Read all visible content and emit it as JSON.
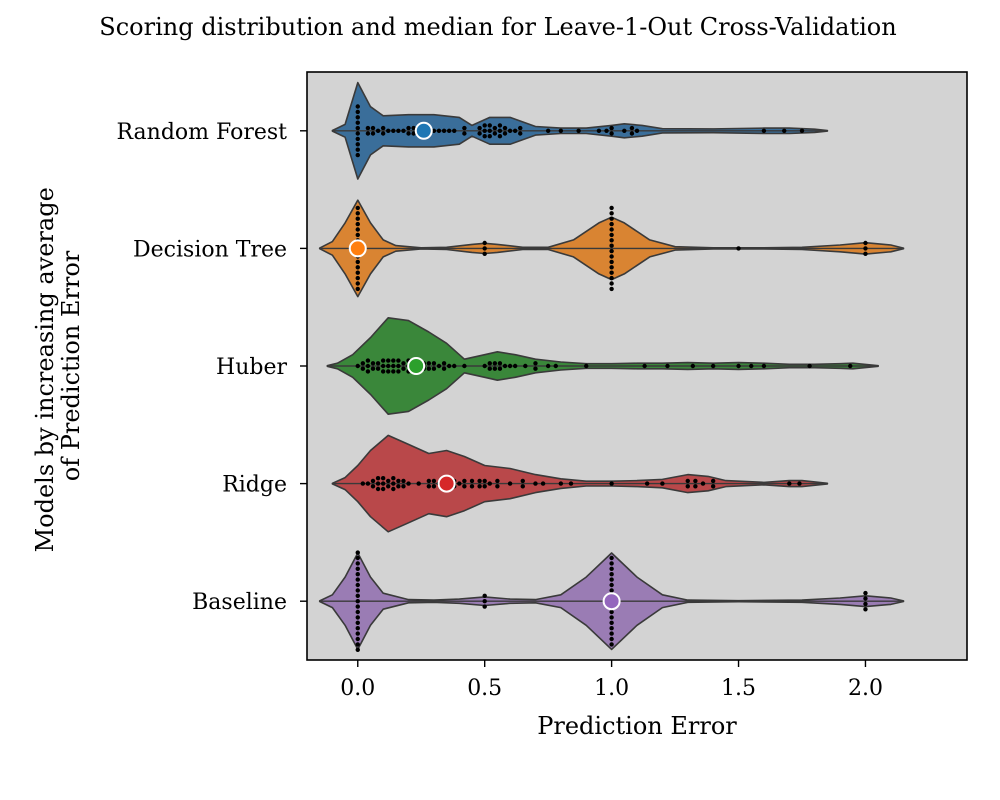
{
  "chart_data": {
    "type": "violin",
    "title": "Scoring distribution and median for Leave-1-Out Cross-Validation",
    "xlabel": "Prediction Error",
    "ylabel_lines": [
      "Models by increasing average",
      "of Prediction Error"
    ],
    "xlim": [
      -0.2,
      2.4
    ],
    "x_ticks": [
      0.0,
      0.5,
      1.0,
      1.5,
      2.0
    ],
    "x_tick_labels": [
      "0.0",
      "0.5",
      "1.0",
      "1.5",
      "2.0"
    ],
    "background": "#d3d3d3",
    "series": [
      {
        "name": "Random Forest",
        "color": "#3a6e9a",
        "median_color": "#1f77b4",
        "median": 0.26,
        "range": [
          -0.1,
          1.85
        ],
        "density": [
          [
            -0.1,
            0.005
          ],
          [
            -0.05,
            0.12
          ],
          [
            0.0,
            0.9
          ],
          [
            0.05,
            0.45
          ],
          [
            0.1,
            0.28
          ],
          [
            0.2,
            0.3
          ],
          [
            0.3,
            0.3
          ],
          [
            0.4,
            0.25
          ],
          [
            0.45,
            0.1
          ],
          [
            0.52,
            0.25
          ],
          [
            0.6,
            0.25
          ],
          [
            0.7,
            0.08
          ],
          [
            0.8,
            0.05
          ],
          [
            0.9,
            0.05
          ],
          [
            1.0,
            0.1
          ],
          [
            1.05,
            0.13
          ],
          [
            1.12,
            0.1
          ],
          [
            1.2,
            0.04
          ],
          [
            1.4,
            0.035
          ],
          [
            1.6,
            0.05
          ],
          [
            1.7,
            0.05
          ],
          [
            1.8,
            0.03
          ],
          [
            1.85,
            0.005
          ]
        ],
        "points": [
          [
            0.0,
            10
          ],
          [
            0.04,
            2
          ],
          [
            0.06,
            2
          ],
          [
            0.08,
            1
          ],
          [
            0.1,
            2
          ],
          [
            0.12,
            1
          ],
          [
            0.14,
            1
          ],
          [
            0.16,
            1
          ],
          [
            0.18,
            1
          ],
          [
            0.2,
            2
          ],
          [
            0.22,
            2
          ],
          [
            0.24,
            1
          ],
          [
            0.26,
            2
          ],
          [
            0.28,
            1
          ],
          [
            0.3,
            1
          ],
          [
            0.32,
            1
          ],
          [
            0.34,
            1
          ],
          [
            0.36,
            1
          ],
          [
            0.38,
            1
          ],
          [
            0.42,
            2
          ],
          [
            0.48,
            2
          ],
          [
            0.5,
            3
          ],
          [
            0.52,
            3
          ],
          [
            0.54,
            2
          ],
          [
            0.56,
            3
          ],
          [
            0.58,
            2
          ],
          [
            0.6,
            1
          ],
          [
            0.62,
            1
          ],
          [
            0.64,
            2
          ],
          [
            0.75,
            1
          ],
          [
            0.8,
            1
          ],
          [
            0.87,
            1
          ],
          [
            0.95,
            1
          ],
          [
            0.98,
            1
          ],
          [
            1.0,
            2
          ],
          [
            1.05,
            1
          ],
          [
            1.08,
            2
          ],
          [
            1.1,
            1
          ],
          [
            1.6,
            1
          ],
          [
            1.68,
            1
          ],
          [
            1.75,
            1
          ]
        ]
      },
      {
        "name": "Decision Tree",
        "color": "#d98432",
        "median_color": "#ff7f0e",
        "median": 0.0,
        "range": [
          -0.15,
          2.15
        ],
        "density": [
          [
            -0.15,
            0.005
          ],
          [
            -0.1,
            0.12
          ],
          [
            -0.05,
            0.45
          ],
          [
            0.0,
            0.85
          ],
          [
            0.05,
            0.45
          ],
          [
            0.1,
            0.15
          ],
          [
            0.15,
            0.05
          ],
          [
            0.25,
            0.01
          ],
          [
            0.35,
            0.02
          ],
          [
            0.45,
            0.07
          ],
          [
            0.5,
            0.09
          ],
          [
            0.55,
            0.07
          ],
          [
            0.65,
            0.02
          ],
          [
            0.75,
            0.02
          ],
          [
            0.85,
            0.15
          ],
          [
            0.95,
            0.45
          ],
          [
            1.0,
            0.55
          ],
          [
            1.05,
            0.45
          ],
          [
            1.15,
            0.15
          ],
          [
            1.25,
            0.03
          ],
          [
            1.4,
            0.01
          ],
          [
            1.5,
            0.01
          ],
          [
            1.6,
            0.01
          ],
          [
            1.75,
            0.02
          ],
          [
            1.9,
            0.06
          ],
          [
            2.0,
            0.1
          ],
          [
            2.1,
            0.06
          ],
          [
            2.15,
            0.005
          ]
        ],
        "points": [
          [
            0.0,
            16
          ],
          [
            0.5,
            3
          ],
          [
            1.0,
            16
          ],
          [
            1.5,
            1
          ],
          [
            2.0,
            3
          ]
        ]
      },
      {
        "name": "Huber",
        "color": "#3a873a",
        "median_color": "#2ca02c",
        "median": 0.23,
        "range": [
          -0.12,
          2.05
        ],
        "density": [
          [
            -0.12,
            0.005
          ],
          [
            -0.08,
            0.05
          ],
          [
            -0.02,
            0.2
          ],
          [
            0.05,
            0.5
          ],
          [
            0.12,
            0.85
          ],
          [
            0.2,
            0.8
          ],
          [
            0.28,
            0.6
          ],
          [
            0.35,
            0.4
          ],
          [
            0.42,
            0.12
          ],
          [
            0.5,
            0.2
          ],
          [
            0.55,
            0.25
          ],
          [
            0.62,
            0.2
          ],
          [
            0.7,
            0.12
          ],
          [
            0.8,
            0.07
          ],
          [
            0.9,
            0.04
          ],
          [
            1.0,
            0.04
          ],
          [
            1.1,
            0.05
          ],
          [
            1.2,
            0.05
          ],
          [
            1.3,
            0.06
          ],
          [
            1.4,
            0.05
          ],
          [
            1.5,
            0.06
          ],
          [
            1.6,
            0.05
          ],
          [
            1.7,
            0.03
          ],
          [
            1.8,
            0.03
          ],
          [
            1.9,
            0.04
          ],
          [
            1.95,
            0.05
          ],
          [
            2.05,
            0.005
          ]
        ],
        "points": [
          [
            0.0,
            1
          ],
          [
            0.02,
            2
          ],
          [
            0.04,
            3
          ],
          [
            0.06,
            2
          ],
          [
            0.08,
            2
          ],
          [
            0.1,
            3
          ],
          [
            0.12,
            3
          ],
          [
            0.14,
            3
          ],
          [
            0.16,
            3
          ],
          [
            0.18,
            2
          ],
          [
            0.2,
            3
          ],
          [
            0.22,
            3
          ],
          [
            0.24,
            2
          ],
          [
            0.26,
            2
          ],
          [
            0.28,
            2
          ],
          [
            0.3,
            2
          ],
          [
            0.32,
            1
          ],
          [
            0.34,
            2
          ],
          [
            0.36,
            1
          ],
          [
            0.38,
            1
          ],
          [
            0.42,
            1
          ],
          [
            0.5,
            1
          ],
          [
            0.52,
            2
          ],
          [
            0.54,
            2
          ],
          [
            0.56,
            2
          ],
          [
            0.58,
            1
          ],
          [
            0.6,
            1
          ],
          [
            0.62,
            1
          ],
          [
            0.66,
            1
          ],
          [
            0.7,
            2
          ],
          [
            0.75,
            1
          ],
          [
            0.78,
            1
          ],
          [
            0.9,
            1
          ],
          [
            1.13,
            1
          ],
          [
            1.22,
            1
          ],
          [
            1.32,
            1
          ],
          [
            1.4,
            1
          ],
          [
            1.5,
            1
          ],
          [
            1.55,
            1
          ],
          [
            1.6,
            1
          ],
          [
            1.78,
            1
          ],
          [
            1.94,
            1
          ]
        ]
      },
      {
        "name": "Ridge",
        "color": "#b9484a",
        "median_color": "#d62728",
        "median": 0.35,
        "range": [
          -0.1,
          1.85
        ],
        "density": [
          [
            -0.1,
            0.005
          ],
          [
            -0.05,
            0.1
          ],
          [
            0.0,
            0.3
          ],
          [
            0.05,
            0.55
          ],
          [
            0.12,
            0.8
          ],
          [
            0.2,
            0.65
          ],
          [
            0.28,
            0.5
          ],
          [
            0.35,
            0.55
          ],
          [
            0.42,
            0.45
          ],
          [
            0.5,
            0.3
          ],
          [
            0.6,
            0.25
          ],
          [
            0.7,
            0.15
          ],
          [
            0.8,
            0.08
          ],
          [
            0.9,
            0.04
          ],
          [
            1.0,
            0.04
          ],
          [
            1.1,
            0.05
          ],
          [
            1.2,
            0.07
          ],
          [
            1.3,
            0.15
          ],
          [
            1.38,
            0.12
          ],
          [
            1.45,
            0.05
          ],
          [
            1.6,
            0.02
          ],
          [
            1.7,
            0.05
          ],
          [
            1.75,
            0.05
          ],
          [
            1.85,
            0.005
          ]
        ],
        "points": [
          [
            0.02,
            1
          ],
          [
            0.04,
            1
          ],
          [
            0.06,
            2
          ],
          [
            0.08,
            3
          ],
          [
            0.1,
            3
          ],
          [
            0.12,
            2
          ],
          [
            0.14,
            3
          ],
          [
            0.16,
            2
          ],
          [
            0.18,
            2
          ],
          [
            0.2,
            1
          ],
          [
            0.24,
            1
          ],
          [
            0.28,
            2
          ],
          [
            0.3,
            2
          ],
          [
            0.32,
            1
          ],
          [
            0.34,
            2
          ],
          [
            0.38,
            2
          ],
          [
            0.4,
            1
          ],
          [
            0.42,
            2
          ],
          [
            0.45,
            2
          ],
          [
            0.48,
            2
          ],
          [
            0.5,
            2
          ],
          [
            0.52,
            1
          ],
          [
            0.55,
            2
          ],
          [
            0.6,
            1
          ],
          [
            0.65,
            2
          ],
          [
            0.7,
            1
          ],
          [
            0.73,
            1
          ],
          [
            0.8,
            1
          ],
          [
            0.84,
            1
          ],
          [
            1.0,
            1
          ],
          [
            1.14,
            1
          ],
          [
            1.2,
            1
          ],
          [
            1.3,
            2
          ],
          [
            1.33,
            2
          ],
          [
            1.36,
            1
          ],
          [
            1.4,
            2
          ],
          [
            1.7,
            1
          ],
          [
            1.74,
            1
          ]
        ]
      },
      {
        "name": "Baseline",
        "color": "#9a7cb4",
        "median_color": "#9467bd",
        "median": 1.0,
        "range": [
          -0.15,
          2.15
        ],
        "density": [
          [
            -0.15,
            0.005
          ],
          [
            -0.1,
            0.12
          ],
          [
            -0.05,
            0.45
          ],
          [
            0.0,
            0.9
          ],
          [
            0.05,
            0.45
          ],
          [
            0.1,
            0.15
          ],
          [
            0.2,
            0.03
          ],
          [
            0.3,
            0.02
          ],
          [
            0.4,
            0.04
          ],
          [
            0.5,
            0.08
          ],
          [
            0.6,
            0.04
          ],
          [
            0.7,
            0.03
          ],
          [
            0.8,
            0.12
          ],
          [
            0.9,
            0.45
          ],
          [
            1.0,
            0.9
          ],
          [
            1.1,
            0.45
          ],
          [
            1.2,
            0.12
          ],
          [
            1.3,
            0.02
          ],
          [
            1.5,
            0.01
          ],
          [
            1.75,
            0.02
          ],
          [
            1.9,
            0.06
          ],
          [
            2.0,
            0.1
          ],
          [
            2.1,
            0.06
          ],
          [
            2.15,
            0.005
          ]
        ],
        "points": [
          [
            0.0,
            19
          ],
          [
            0.5,
            3
          ],
          [
            1.0,
            17
          ],
          [
            2.0,
            4
          ]
        ]
      }
    ]
  }
}
